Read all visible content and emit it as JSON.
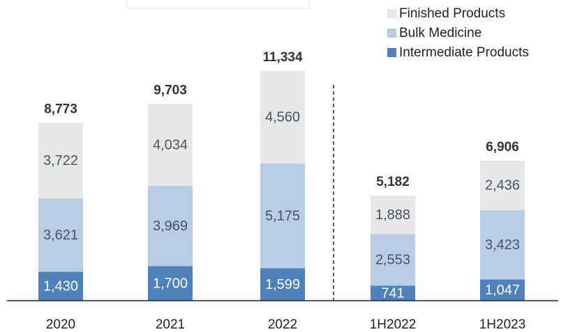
{
  "chart_data": {
    "type": "stacked_bar",
    "categories": [
      "2020",
      "2021",
      "2022",
      "1H2022",
      "1H2023"
    ],
    "series": [
      {
        "name": "Intermediate Products",
        "color": "#4f81bd",
        "values": [
          1430,
          1700,
          1599,
          741,
          1047
        ],
        "value_labels": [
          "1,430",
          "1,700",
          "1,599",
          "741",
          "1,047"
        ]
      },
      {
        "name": "Bulk Medicine",
        "color": "#b8cce4",
        "values": [
          3621,
          3969,
          5175,
          2553,
          3423
        ],
        "value_labels": [
          "3,621",
          "3,969",
          "5,175",
          "2,553",
          "3,423"
        ]
      },
      {
        "name": "Finished Products",
        "color": "#e7e7e7",
        "values": [
          3722,
          4034,
          4560,
          1888,
          2436
        ],
        "value_labels": [
          "3,722",
          "4,034",
          "4,560",
          "1,888",
          "2,436"
        ]
      }
    ],
    "totals": [
      8773,
      9703,
      11334,
      5182,
      6906
    ],
    "total_labels": [
      "8,773",
      "9,703",
      "11,334",
      "5,182",
      "6,906"
    ],
    "legend": "top-right"
  }
}
